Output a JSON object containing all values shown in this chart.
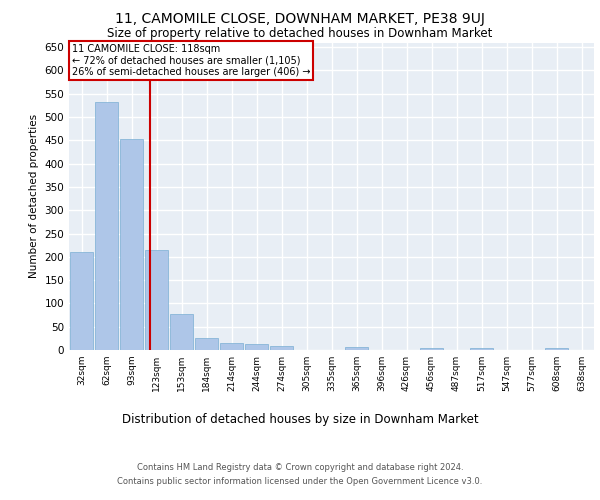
{
  "title": "11, CAMOMILE CLOSE, DOWNHAM MARKET, PE38 9UJ",
  "subtitle": "Size of property relative to detached houses in Downham Market",
  "xlabel": "Distribution of detached houses by size in Downham Market",
  "ylabel": "Number of detached properties",
  "footer_line1": "Contains HM Land Registry data © Crown copyright and database right 2024.",
  "footer_line2": "Contains public sector information licensed under the Open Government Licence v3.0.",
  "categories": [
    "32sqm",
    "62sqm",
    "93sqm",
    "123sqm",
    "153sqm",
    "184sqm",
    "214sqm",
    "244sqm",
    "274sqm",
    "305sqm",
    "335sqm",
    "365sqm",
    "396sqm",
    "426sqm",
    "456sqm",
    "487sqm",
    "517sqm",
    "547sqm",
    "577sqm",
    "608sqm",
    "638sqm"
  ],
  "values": [
    210,
    533,
    452,
    214,
    78,
    26,
    15,
    13,
    8,
    0,
    0,
    6,
    0,
    0,
    5,
    0,
    5,
    0,
    0,
    5,
    0
  ],
  "bar_color": "#aec6e8",
  "bar_edgecolor": "#7aafd4",
  "vline_x": 2.72,
  "vline_color": "#cc0000",
  "annotation_text": "11 CAMOMILE CLOSE: 118sqm\n← 72% of detached houses are smaller (1,105)\n26% of semi-detached houses are larger (406) →",
  "annotation_box_color": "#ffffff",
  "annotation_box_edgecolor": "#cc0000",
  "ylim": [
    0,
    660
  ],
  "yticks": [
    0,
    50,
    100,
    150,
    200,
    250,
    300,
    350,
    400,
    450,
    500,
    550,
    600,
    650
  ],
  "bg_color": "#e8eef5",
  "grid_color": "#ffffff",
  "title_fontsize": 10,
  "subtitle_fontsize": 8.5
}
